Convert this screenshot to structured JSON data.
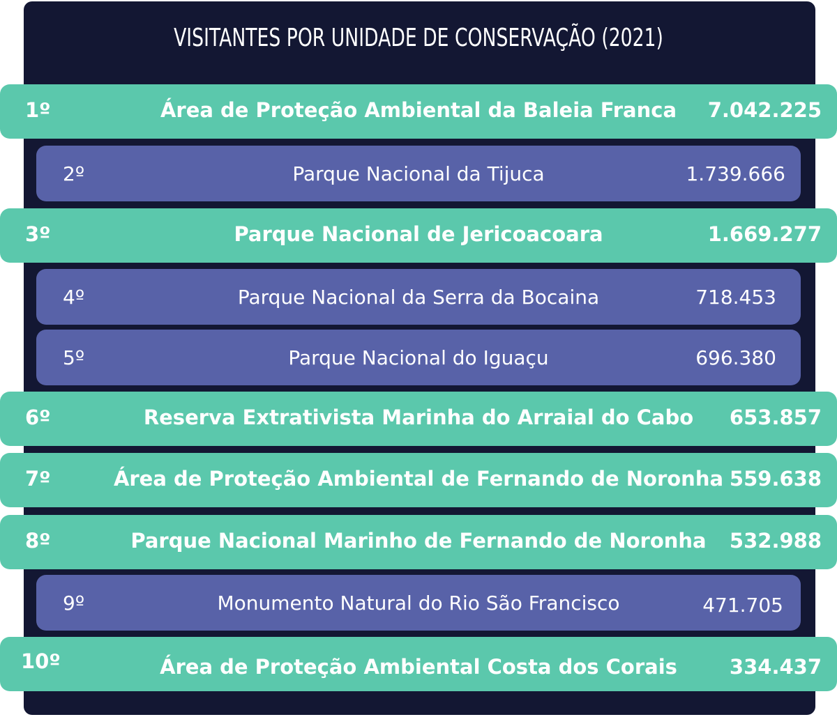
{
  "chart_data": {
    "type": "table",
    "title": "VISITANTES POR UNIDADE DE CONSERVAÇÃO  (2021)",
    "rows": [
      {
        "rank": "1º",
        "name": "Área de Proteção Ambiental da Baleia Franca",
        "value": "7.042.225",
        "style": "green"
      },
      {
        "rank": "2º",
        "name": "Parque Nacional da Tijuca",
        "value": "1.739.666",
        "style": "purple"
      },
      {
        "rank": "3º",
        "name": "Parque Nacional de Jericoacoara",
        "value": "1.669.277",
        "style": "green"
      },
      {
        "rank": "4º",
        "name": "Parque Nacional da Serra da Bocaina",
        "value": "718.453",
        "style": "purple"
      },
      {
        "rank": "5º",
        "name": "Parque Nacional do Iguaçu",
        "value": "696.380",
        "style": "purple"
      },
      {
        "rank": "6º",
        "name": "Reserva Extrativista Marinha do Arraial do Cabo",
        "value": "653.857",
        "style": "green"
      },
      {
        "rank": "7º",
        "name": "Área de Proteção Ambiental de Fernando de Noronha",
        "value": "559.638",
        "style": "green"
      },
      {
        "rank": "8º",
        "name": "Parque Nacional Marinho de Fernando de Noronha",
        "value": "532.988",
        "style": "green"
      },
      {
        "rank": "9º",
        "name": "Monumento Natural do Rio São Francisco",
        "value": "471.705",
        "style": "purple"
      },
      {
        "rank": "10º",
        "name": "Área de Proteção Ambiental Costa dos Corais",
        "value": "334.437",
        "style": "green"
      }
    ]
  },
  "colors": {
    "panel": "#131733",
    "green_row": "#5bc8ac",
    "purple_row": "#5862a8",
    "text": "#ffffff"
  }
}
